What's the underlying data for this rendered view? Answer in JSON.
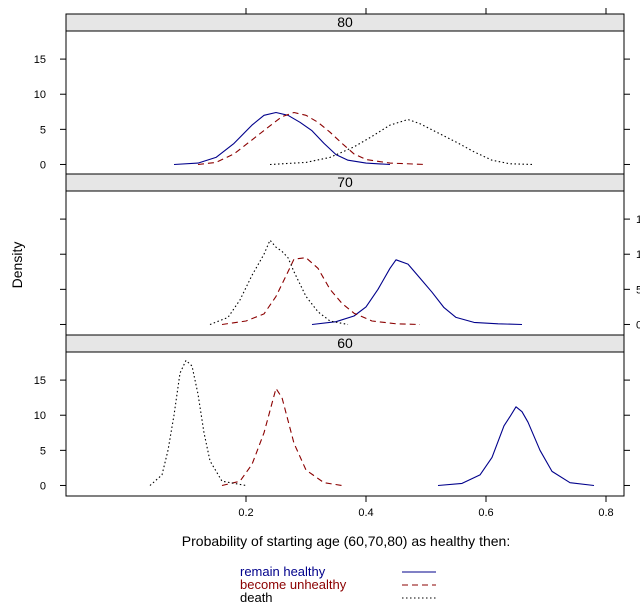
{
  "chart_data": {
    "type": "line",
    "subtype": "density-panels",
    "title": "",
    "xlabel": "Probability of starting age (60,70,80) as healthy then:",
    "ylabel": "Density",
    "xlim": [
      -0.1,
      0.83
    ],
    "x_ticks": [
      0.2,
      0.4,
      0.6,
      0.8
    ],
    "x_tick_labels": [
      "0.2",
      "0.4",
      "0.6",
      "0.8"
    ],
    "ylim": [
      -1.5,
      19
    ],
    "y_ticks": [
      0,
      5,
      10,
      15
    ],
    "y_tick_labels": [
      "0",
      "5",
      "10",
      "15"
    ],
    "grid": false,
    "legend_placement": "bottom",
    "series_styles": [
      {
        "name": "remain healthy",
        "color": "#00008B",
        "dash": ""
      },
      {
        "name": "become unhealthy",
        "color": "#8B0000",
        "dash": "6,4"
      },
      {
        "name": "death",
        "color": "#000000",
        "dash": "1.5,2.5"
      }
    ],
    "panels": [
      {
        "label": "80",
        "series": [
          {
            "name": "remain healthy",
            "points": [
              [
                0.08,
                0
              ],
              [
                0.12,
                0.2
              ],
              [
                0.15,
                1
              ],
              [
                0.18,
                3
              ],
              [
                0.21,
                5.6
              ],
              [
                0.23,
                7
              ],
              [
                0.25,
                7.4
              ],
              [
                0.27,
                7
              ],
              [
                0.29,
                6
              ],
              [
                0.31,
                4.8
              ],
              [
                0.33,
                3
              ],
              [
                0.35,
                1.4
              ],
              [
                0.37,
                0.6
              ],
              [
                0.4,
                0.2
              ],
              [
                0.44,
                0
              ]
            ]
          },
          {
            "name": "become unhealthy",
            "points": [
              [
                0.12,
                0
              ],
              [
                0.15,
                0.3
              ],
              [
                0.18,
                1.5
              ],
              [
                0.21,
                3.5
              ],
              [
                0.24,
                5.5
              ],
              [
                0.26,
                6.8
              ],
              [
                0.28,
                7.4
              ],
              [
                0.3,
                7
              ],
              [
                0.32,
                6
              ],
              [
                0.34,
                4.6
              ],
              [
                0.36,
                3
              ],
              [
                0.38,
                1.5
              ],
              [
                0.4,
                0.7
              ],
              [
                0.44,
                0.2
              ],
              [
                0.5,
                0
              ]
            ]
          },
          {
            "name": "death",
            "points": [
              [
                0.24,
                0
              ],
              [
                0.3,
                0.3
              ],
              [
                0.34,
                1
              ],
              [
                0.38,
                2.5
              ],
              [
                0.41,
                4
              ],
              [
                0.44,
                5.6
              ],
              [
                0.47,
                6.4
              ],
              [
                0.49,
                5.8
              ],
              [
                0.52,
                4.5
              ],
              [
                0.55,
                3.2
              ],
              [
                0.58,
                1.8
              ],
              [
                0.61,
                0.6
              ],
              [
                0.64,
                0.1
              ],
              [
                0.68,
                0
              ]
            ]
          }
        ]
      },
      {
        "label": "70",
        "series": [
          {
            "name": "remain healthy",
            "points": [
              [
                0.31,
                0
              ],
              [
                0.35,
                0.4
              ],
              [
                0.38,
                1.2
              ],
              [
                0.4,
                2.5
              ],
              [
                0.42,
                5
              ],
              [
                0.44,
                8
              ],
              [
                0.45,
                9.2
              ],
              [
                0.47,
                8.6
              ],
              [
                0.49,
                6.6
              ],
              [
                0.51,
                4.6
              ],
              [
                0.53,
                2.4
              ],
              [
                0.55,
                1
              ],
              [
                0.58,
                0.3
              ],
              [
                0.62,
                0.1
              ],
              [
                0.66,
                0
              ]
            ]
          },
          {
            "name": "become unhealthy",
            "points": [
              [
                0.16,
                0
              ],
              [
                0.2,
                0.5
              ],
              [
                0.23,
                1.5
              ],
              [
                0.25,
                4
              ],
              [
                0.27,
                7.5
              ],
              [
                0.28,
                9.3
              ],
              [
                0.3,
                9.5
              ],
              [
                0.32,
                8
              ],
              [
                0.34,
                5
              ],
              [
                0.36,
                3
              ],
              [
                0.38,
                1.6
              ],
              [
                0.41,
                0.5
              ],
              [
                0.45,
                0.1
              ],
              [
                0.49,
                0
              ]
            ]
          },
          {
            "name": "death",
            "points": [
              [
                0.14,
                0
              ],
              [
                0.17,
                1
              ],
              [
                0.19,
                3.5
              ],
              [
                0.21,
                7
              ],
              [
                0.23,
                10
              ],
              [
                0.24,
                12
              ],
              [
                0.25,
                11
              ],
              [
                0.26,
                10.4
              ],
              [
                0.27,
                9.5
              ],
              [
                0.28,
                7.5
              ],
              [
                0.3,
                4
              ],
              [
                0.32,
                1.8
              ],
              [
                0.34,
                0.5
              ],
              [
                0.37,
                0
              ]
            ]
          }
        ]
      },
      {
        "label": "60",
        "series": [
          {
            "name": "remain healthy",
            "points": [
              [
                0.52,
                0
              ],
              [
                0.56,
                0.3
              ],
              [
                0.59,
                1.5
              ],
              [
                0.61,
                4
              ],
              [
                0.63,
                8.5
              ],
              [
                0.64,
                9.8
              ],
              [
                0.65,
                11.2
              ],
              [
                0.66,
                10.5
              ],
              [
                0.67,
                9
              ],
              [
                0.69,
                5
              ],
              [
                0.71,
                2
              ],
              [
                0.74,
                0.4
              ],
              [
                0.78,
                0
              ]
            ]
          },
          {
            "name": "become unhealthy",
            "points": [
              [
                0.16,
                0
              ],
              [
                0.19,
                0.6
              ],
              [
                0.21,
                3
              ],
              [
                0.23,
                7.5
              ],
              [
                0.25,
                13.8
              ],
              [
                0.26,
                12.5
              ],
              [
                0.28,
                6
              ],
              [
                0.3,
                2.2
              ],
              [
                0.33,
                0.4
              ],
              [
                0.36,
                0
              ]
            ]
          },
          {
            "name": "death",
            "points": [
              [
                0.04,
                0
              ],
              [
                0.06,
                1.5
              ],
              [
                0.07,
                5
              ],
              [
                0.08,
                10
              ],
              [
                0.09,
                16
              ],
              [
                0.1,
                17.8
              ],
              [
                0.11,
                17
              ],
              [
                0.12,
                13
              ],
              [
                0.13,
                7.5
              ],
              [
                0.14,
                3.5
              ],
              [
                0.16,
                0.6
              ],
              [
                0.2,
                0
              ]
            ]
          }
        ]
      }
    ]
  },
  "legend": {
    "items": [
      {
        "label": "remain healthy",
        "color": "#00008B"
      },
      {
        "label": "become unhealthy",
        "color": "#8B0000"
      },
      {
        "label": "death",
        "color": "#000000"
      }
    ]
  }
}
